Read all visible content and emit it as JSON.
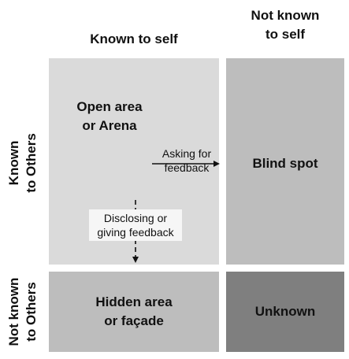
{
  "columns": {
    "known_to_self": "Known to self",
    "not_known_to_self_line1": "Not known",
    "not_known_to_self_line2": "to self"
  },
  "rows": {
    "known_to_others_line1": "Known",
    "known_to_others_line2": "to Others",
    "not_known_to_others_line1": "Not known",
    "not_known_to_others_line2": "to Others"
  },
  "quadrants": {
    "open": {
      "line1": "Open area",
      "line2": "or Arena",
      "color": "#dadada"
    },
    "blind": {
      "line1": "Blind spot",
      "color": "#bdbdbd"
    },
    "hidden": {
      "line1": "Hidden area",
      "line2": "or façade",
      "color": "#bdbdbd"
    },
    "unknown": {
      "line1": "Unknown",
      "color": "#7f7f7f"
    }
  },
  "annotations": {
    "asking_line1": "Asking for",
    "asking_line2": "feedback",
    "disclosing_line1": "Disclosing or",
    "disclosing_line2": "giving feedback"
  }
}
